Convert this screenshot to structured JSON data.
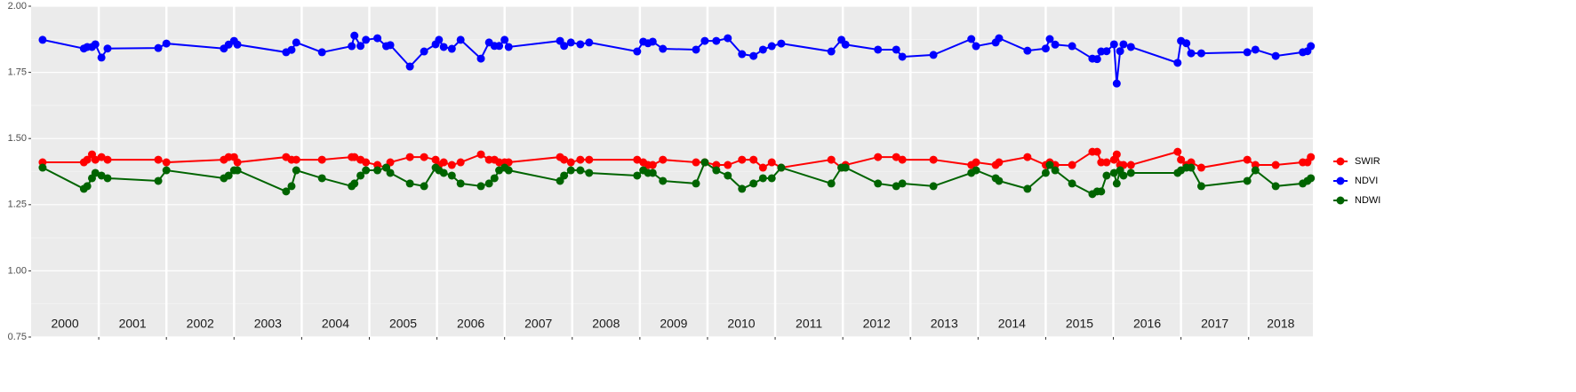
{
  "chart_data": {
    "type": "line",
    "x": [
      2000.17,
      2000.78,
      2000.83,
      2000.9,
      2000.95,
      2001.04,
      2001.13,
      2001.88,
      2002.0,
      2002.85,
      2002.92,
      2003.0,
      2003.05,
      2003.77,
      2003.85,
      2003.92,
      2004.3,
      2004.74,
      2004.78,
      2004.87,
      2004.95,
      2005.12,
      2005.25,
      2005.31,
      2005.6,
      2005.81,
      2005.98,
      2006.03,
      2006.1,
      2006.22,
      2006.35,
      2006.65,
      2006.77,
      2006.85,
      2006.92,
      2007.0,
      2007.06,
      2007.82,
      2007.88,
      2007.98,
      2008.12,
      2008.25,
      2008.96,
      2009.05,
      2009.12,
      2009.19,
      2009.34,
      2009.83,
      2009.96,
      2010.13,
      2010.3,
      2010.51,
      2010.68,
      2010.82,
      2010.95,
      2011.09,
      2011.83,
      2011.98,
      2012.04,
      2012.52,
      2012.79,
      2012.88,
      2013.34,
      2013.9,
      2013.97,
      2014.26,
      2014.31,
      2014.73,
      2015.0,
      2015.06,
      2015.14,
      2015.39,
      2015.69,
      2015.76,
      2015.82,
      2015.9,
      2016.01,
      2016.05,
      2016.1,
      2016.15,
      2016.26,
      2016.95,
      2017.0,
      2017.08,
      2017.15,
      2017.3,
      2017.98,
      2018.1,
      2018.4,
      2018.8,
      2018.87,
      2018.92
    ],
    "series": [
      {
        "name": "SWIR",
        "color": "#ff0000",
        "values": [
          1.41,
          1.41,
          1.42,
          1.44,
          1.42,
          1.43,
          1.42,
          1.42,
          1.41,
          1.42,
          1.43,
          1.43,
          1.41,
          1.43,
          1.42,
          1.42,
          1.42,
          1.43,
          1.43,
          1.42,
          1.41,
          1.4,
          1.39,
          1.41,
          1.43,
          1.43,
          1.42,
          1.4,
          1.41,
          1.4,
          1.41,
          1.44,
          1.42,
          1.42,
          1.41,
          1.41,
          1.41,
          1.43,
          1.42,
          1.41,
          1.42,
          1.42,
          1.42,
          1.41,
          1.4,
          1.4,
          1.42,
          1.41,
          1.41,
          1.4,
          1.4,
          1.42,
          1.42,
          1.39,
          1.41,
          1.39,
          1.42,
          1.39,
          1.4,
          1.43,
          1.43,
          1.42,
          1.42,
          1.4,
          1.41,
          1.4,
          1.41,
          1.43,
          1.4,
          1.41,
          1.4,
          1.4,
          1.45,
          1.45,
          1.41,
          1.41,
          1.42,
          1.44,
          1.4,
          1.4,
          1.4,
          1.45,
          1.42,
          1.4,
          1.41,
          1.39,
          1.42,
          1.4,
          1.4,
          1.41,
          1.41,
          1.43
        ]
      },
      {
        "name": "NDVI",
        "color": "#0000ff",
        "values": [
          1.873,
          1.84,
          1.846,
          1.846,
          1.856,
          1.806,
          1.84,
          1.842,
          1.859,
          1.84,
          1.855,
          1.869,
          1.855,
          1.826,
          1.835,
          1.863,
          1.826,
          1.849,
          1.889,
          1.85,
          1.873,
          1.879,
          1.849,
          1.853,
          1.772,
          1.829,
          1.856,
          1.873,
          1.846,
          1.839,
          1.873,
          1.802,
          1.863,
          1.85,
          1.85,
          1.873,
          1.846,
          1.869,
          1.85,
          1.863,
          1.856,
          1.863,
          1.829,
          1.866,
          1.86,
          1.866,
          1.839,
          1.836,
          1.869,
          1.869,
          1.879,
          1.819,
          1.812,
          1.836,
          1.849,
          1.859,
          1.829,
          1.873,
          1.855,
          1.836,
          1.836,
          1.809,
          1.816,
          1.876,
          1.849,
          1.863,
          1.879,
          1.832,
          1.84,
          1.876,
          1.855,
          1.849,
          1.802,
          1.8,
          1.829,
          1.83,
          1.856,
          1.708,
          1.83,
          1.856,
          1.846,
          1.786,
          1.869,
          1.86,
          1.822,
          1.822,
          1.826,
          1.836,
          1.812,
          1.826,
          1.83,
          1.849
        ]
      },
      {
        "name": "NDWI",
        "color": "#006400",
        "values": [
          1.39,
          1.31,
          1.32,
          1.35,
          1.37,
          1.36,
          1.35,
          1.34,
          1.38,
          1.35,
          1.36,
          1.38,
          1.38,
          1.3,
          1.32,
          1.38,
          1.35,
          1.32,
          1.33,
          1.36,
          1.38,
          1.38,
          1.39,
          1.37,
          1.33,
          1.32,
          1.39,
          1.38,
          1.37,
          1.36,
          1.33,
          1.32,
          1.33,
          1.35,
          1.38,
          1.39,
          1.38,
          1.34,
          1.36,
          1.38,
          1.38,
          1.37,
          1.36,
          1.38,
          1.37,
          1.37,
          1.34,
          1.33,
          1.41,
          1.38,
          1.36,
          1.31,
          1.33,
          1.35,
          1.35,
          1.39,
          1.33,
          1.39,
          1.39,
          1.33,
          1.32,
          1.33,
          1.32,
          1.37,
          1.38,
          1.35,
          1.34,
          1.31,
          1.37,
          1.4,
          1.38,
          1.33,
          1.29,
          1.3,
          1.3,
          1.36,
          1.37,
          1.33,
          1.38,
          1.36,
          1.37,
          1.37,
          1.38,
          1.39,
          1.39,
          1.32,
          1.34,
          1.38,
          1.32,
          1.33,
          1.34,
          1.35
        ]
      }
    ],
    "xlim": [
      2000,
      2018.95
    ],
    "ylim": [
      0.75,
      2.0
    ],
    "yticks": [
      {
        "value": 0.75,
        "label": "0.75"
      },
      {
        "value": 1.0,
        "label": "1.00"
      },
      {
        "value": 1.25,
        "label": "1.25"
      },
      {
        "value": 1.5,
        "label": "1.50"
      },
      {
        "value": 1.75,
        "label": "1.75"
      },
      {
        "value": 2.0,
        "label": "2.00"
      }
    ],
    "facets": [
      {
        "label": "2000",
        "range": [
          2000,
          2001
        ]
      },
      {
        "label": "2001",
        "range": [
          2001,
          2002
        ]
      },
      {
        "label": "2002",
        "range": [
          2002,
          2003
        ]
      },
      {
        "label": "2003",
        "range": [
          2003,
          2004
        ]
      },
      {
        "label": "2004",
        "range": [
          2004,
          2005
        ]
      },
      {
        "label": "2005",
        "range": [
          2005,
          2006
        ]
      },
      {
        "label": "2006",
        "range": [
          2006,
          2007
        ]
      },
      {
        "label": "2007",
        "range": [
          2007,
          2008
        ]
      },
      {
        "label": "2008",
        "range": [
          2008,
          2009
        ]
      },
      {
        "label": "2009",
        "range": [
          2009,
          2010
        ]
      },
      {
        "label": "2010",
        "range": [
          2010,
          2011
        ]
      },
      {
        "label": "2011",
        "range": [
          2011,
          2012
        ]
      },
      {
        "label": "2012",
        "range": [
          2012,
          2013
        ]
      },
      {
        "label": "2013",
        "range": [
          2013,
          2014
        ]
      },
      {
        "label": "2014",
        "range": [
          2014,
          2015
        ]
      },
      {
        "label": "2015",
        "range": [
          2015,
          2016
        ]
      },
      {
        "label": "2016",
        "range": [
          2016,
          2017
        ]
      },
      {
        "label": "2017",
        "range": [
          2017,
          2018
        ]
      },
      {
        "label": "2018",
        "range": [
          2018,
          2019
        ]
      }
    ],
    "grid": true,
    "legend": "right"
  }
}
